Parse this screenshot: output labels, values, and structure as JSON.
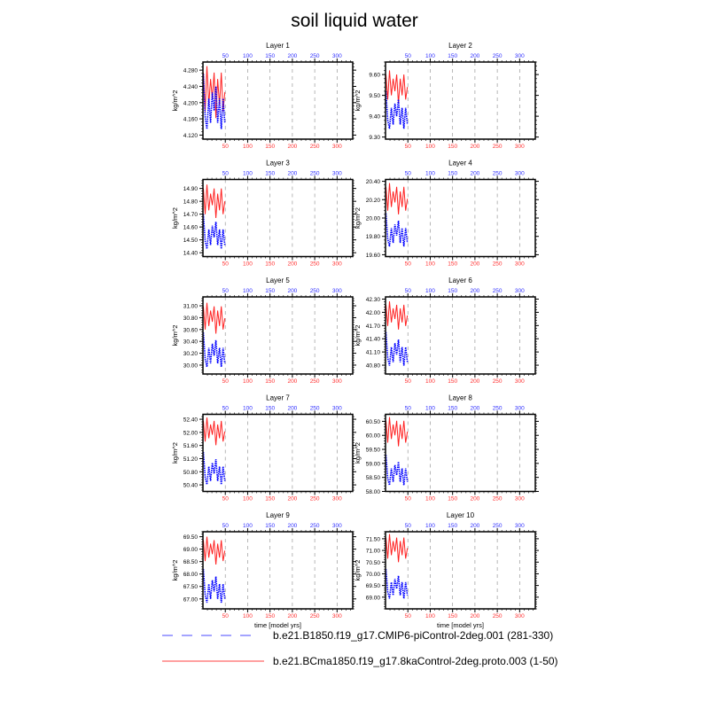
{
  "chart_data": {
    "type": "line",
    "title": "soil liquid water",
    "xlabel": "time [model yrs]",
    "ylabel": "kg/m^2",
    "xlim": [
      0,
      335
    ],
    "x_ticks": [
      50,
      100,
      150,
      200,
      250,
      300
    ],
    "x_tick_labels": [
      "50",
      "100",
      "150",
      "200",
      "250",
      "300"
    ],
    "grid": "vertical dashed",
    "legend": [
      {
        "name": "b.e21.B1850.f19_g17.CMIP6-piControl-2deg.001 (281-330)",
        "color": "#0000ff",
        "style": "dashed"
      },
      {
        "name": "b.e21.BCma1850.f19_g17.8kaControl-2deg.proto.003 (1-50)",
        "color": "#ff0000",
        "style": "solid"
      }
    ],
    "legend_position": "bottom",
    "x": [
      1,
      5,
      9,
      13,
      17,
      21,
      25,
      29,
      33,
      37,
      41,
      45,
      49
    ],
    "panels": [
      {
        "title": "Layer 1",
        "ylim": [
          4.11,
          4.3
        ],
        "yticks": [
          "4.120",
          "4.160",
          "4.200",
          "4.240",
          "4.280"
        ],
        "red": [
          4.274,
          4.178,
          4.29,
          4.194,
          4.258,
          4.21,
          4.274,
          4.162,
          4.258,
          4.194,
          4.274,
          4.178,
          4.226
        ],
        "blue": [
          4.27,
          4.165,
          4.135,
          4.21,
          4.15,
          4.225,
          4.18,
          4.24,
          4.15,
          4.21,
          4.135,
          4.21,
          4.15
        ]
      },
      {
        "title": "Layer 2",
        "ylim": [
          9.29,
          9.66
        ],
        "yticks": [
          "9.30",
          "9.40",
          "9.50",
          "9.60"
        ],
        "red": [
          9.6,
          9.48,
          9.62,
          9.5,
          9.58,
          9.52,
          9.6,
          9.46,
          9.58,
          9.5,
          9.6,
          9.48,
          9.54
        ],
        "blue": [
          9.52,
          9.38,
          9.34,
          9.44,
          9.36,
          9.46,
          9.4,
          9.48,
          9.36,
          9.44,
          9.34,
          9.44,
          9.36
        ]
      },
      {
        "title": "Layer 3",
        "ylim": [
          14.37,
          14.97
        ],
        "yticks": [
          "14.40",
          "14.50",
          "14.60",
          "14.70",
          "14.80",
          "14.90"
        ],
        "red": [
          14.9,
          14.7,
          14.93,
          14.73,
          14.86,
          14.77,
          14.9,
          14.67,
          14.86,
          14.73,
          14.9,
          14.7,
          14.8
        ],
        "blue": [
          14.7,
          14.49,
          14.43,
          14.58,
          14.46,
          14.61,
          14.52,
          14.64,
          14.46,
          14.58,
          14.43,
          14.58,
          14.46
        ]
      },
      {
        "title": "Layer 4",
        "ylim": [
          19.58,
          20.42
        ],
        "yticks": [
          "19.60",
          "19.80",
          "20.00",
          "20.20",
          "20.40"
        ],
        "red": [
          20.34,
          20.08,
          20.38,
          20.12,
          20.29,
          20.17,
          20.34,
          20.04,
          20.29,
          20.12,
          20.34,
          20.08,
          20.21
        ],
        "blue": [
          20.05,
          19.77,
          19.69,
          19.89,
          19.73,
          19.93,
          19.81,
          19.97,
          19.73,
          19.89,
          19.69,
          19.89,
          19.73
        ]
      },
      {
        "title": "Layer 5",
        "ylim": [
          29.85,
          31.15
        ],
        "yticks": [
          "30.00",
          "30.20",
          "30.40",
          "30.60",
          "30.80",
          "31.00"
        ],
        "red": [
          30.99,
          30.6,
          31.05,
          30.66,
          30.92,
          30.73,
          30.99,
          30.53,
          30.92,
          30.66,
          30.99,
          30.6,
          30.79
        ],
        "blue": [
          30.55,
          30.1,
          29.97,
          30.29,
          30.03,
          30.36,
          30.16,
          30.42,
          30.03,
          30.29,
          29.97,
          30.29,
          30.03
        ]
      },
      {
        "title": "Layer 6",
        "ylim": [
          40.6,
          42.35
        ],
        "yticks": [
          "40.80",
          "41.10",
          "41.40",
          "41.70",
          "42.00",
          "42.30"
        ],
        "red": [
          42.17,
          41.69,
          42.25,
          41.77,
          42.09,
          41.85,
          42.17,
          41.61,
          42.09,
          41.77,
          42.17,
          41.69,
          41.93
        ],
        "blue": [
          41.55,
          40.96,
          40.79,
          41.21,
          40.87,
          41.3,
          41.04,
          41.38,
          40.87,
          41.21,
          40.79,
          41.21,
          40.87
        ]
      },
      {
        "title": "Layer 7",
        "ylim": [
          50.2,
          52.55
        ],
        "yticks": [
          "50.40",
          "50.80",
          "51.20",
          "51.60",
          "52.00",
          "52.40"
        ],
        "red": [
          52.35,
          51.72,
          52.45,
          51.82,
          52.24,
          51.93,
          52.35,
          51.61,
          52.24,
          51.82,
          52.35,
          51.72,
          52.03
        ],
        "blue": [
          51.4,
          50.63,
          50.41,
          50.96,
          50.52,
          51.07,
          50.74,
          51.18,
          50.52,
          50.96,
          50.41,
          50.96,
          50.52
        ]
      },
      {
        "title": "Layer 8",
        "ylim": [
          58.0,
          60.75
        ],
        "yticks": [
          "58.00",
          "58.50",
          "59.00",
          "59.50",
          "60.00",
          "60.50"
        ],
        "red": [
          60.52,
          59.74,
          60.65,
          59.87,
          60.39,
          60.0,
          60.52,
          59.61,
          60.39,
          59.87,
          60.52,
          59.74,
          60.13
        ],
        "blue": [
          59.3,
          58.46,
          58.22,
          58.82,
          58.34,
          58.94,
          58.58,
          59.06,
          58.34,
          58.82,
          58.22,
          58.82,
          58.34
        ]
      },
      {
        "title": "Layer 9",
        "ylim": [
          66.6,
          69.7
        ],
        "yticks": [
          "67.00",
          "67.50",
          "68.00",
          "68.50",
          "69.00",
          "69.50"
        ],
        "red": [
          69.36,
          68.52,
          69.5,
          68.66,
          69.22,
          68.8,
          69.36,
          68.38,
          69.22,
          68.66,
          69.36,
          68.52,
          68.94
        ],
        "blue": [
          68.2,
          67.15,
          66.85,
          67.6,
          67.0,
          67.75,
          67.3,
          67.9,
          67.0,
          67.6,
          66.85,
          67.6,
          67.0
        ]
      },
      {
        "title": "Layer 10",
        "ylim": [
          68.5,
          71.8
        ],
        "yticks": [
          "69.00",
          "69.50",
          "70.00",
          "70.50",
          "71.00",
          "71.50"
        ],
        "red": [
          71.55,
          70.65,
          71.7,
          70.8,
          71.4,
          70.95,
          71.55,
          70.5,
          71.4,
          70.8,
          71.55,
          70.65,
          71.1
        ],
        "blue": [
          70.2,
          69.22,
          68.94,
          69.64,
          69.08,
          69.78,
          69.36,
          69.92,
          69.08,
          69.64,
          68.94,
          69.64,
          69.08
        ]
      }
    ]
  }
}
